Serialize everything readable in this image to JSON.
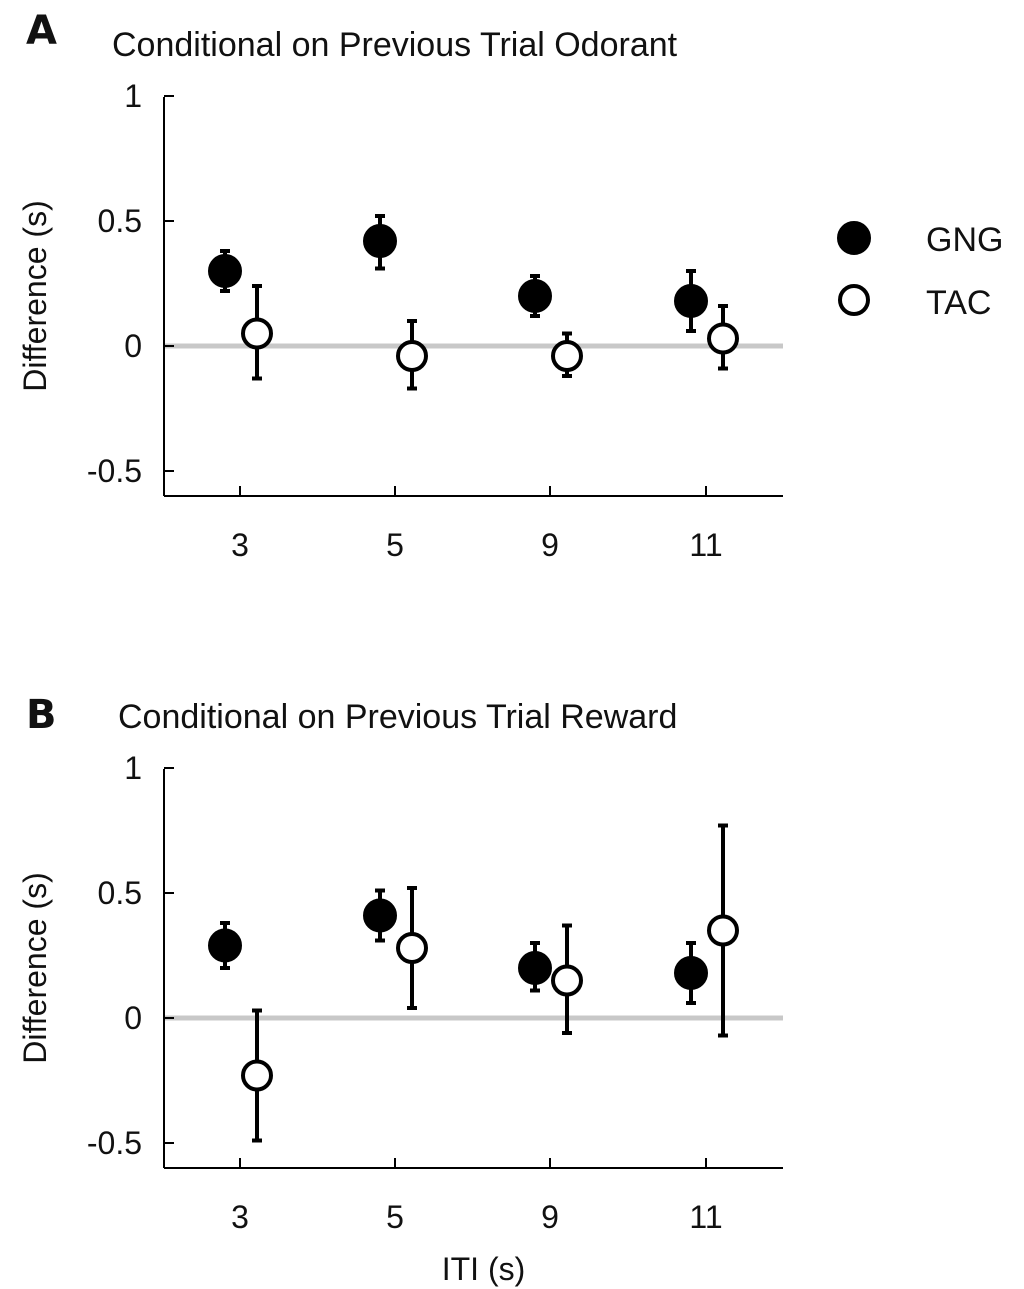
{
  "legend": [
    {
      "key": "gng",
      "label": "GNG",
      "fill": "#000000"
    },
    {
      "key": "tac",
      "label": "TAC",
      "fill": "#ffffff"
    }
  ],
  "chart_data": [
    {
      "type": "scatter",
      "panel": "A",
      "title": "Conditional on Previous Trial Odorant",
      "ylabel": "Difference (s)",
      "xlabel": "",
      "categories": [
        "3",
        "5",
        "9",
        "11"
      ],
      "yticks": [
        "1",
        "0.5",
        "0",
        "-0.5"
      ],
      "ytick_values": [
        1,
        0.5,
        0,
        -0.5
      ],
      "ylim": [
        -0.6,
        1.0
      ],
      "zero_line": true,
      "series": [
        {
          "name": "GNG",
          "values": [
            0.3,
            0.42,
            0.2,
            0.18
          ],
          "err_low": [
            0.22,
            0.31,
            0.12,
            0.06
          ],
          "err_high": [
            0.38,
            0.52,
            0.28,
            0.3
          ]
        },
        {
          "name": "TAC",
          "values": [
            0.05,
            -0.04,
            -0.04,
            0.03
          ],
          "err_low": [
            -0.13,
            -0.17,
            -0.12,
            -0.09
          ],
          "err_high": [
            0.24,
            0.1,
            0.05,
            0.16
          ]
        }
      ]
    },
    {
      "type": "scatter",
      "panel": "B",
      "title": "Conditional on Previous Trial Reward",
      "ylabel": "Difference (s)",
      "xlabel": "ITI (s)",
      "categories": [
        "3",
        "5",
        "9",
        "11"
      ],
      "yticks": [
        "1",
        "0.5",
        "0",
        "-0.5"
      ],
      "ytick_values": [
        1,
        0.5,
        0,
        -0.5
      ],
      "ylim": [
        -0.6,
        1.0
      ],
      "zero_line": true,
      "series": [
        {
          "name": "GNG",
          "values": [
            0.29,
            0.41,
            0.2,
            0.18
          ],
          "err_low": [
            0.2,
            0.31,
            0.11,
            0.06
          ],
          "err_high": [
            0.38,
            0.51,
            0.3,
            0.3
          ]
        },
        {
          "name": "TAC",
          "values": [
            -0.23,
            0.28,
            0.15,
            0.35
          ],
          "err_low": [
            -0.49,
            0.04,
            -0.06,
            -0.07
          ],
          "err_high": [
            0.03,
            0.52,
            0.37,
            0.77
          ]
        }
      ]
    }
  ]
}
